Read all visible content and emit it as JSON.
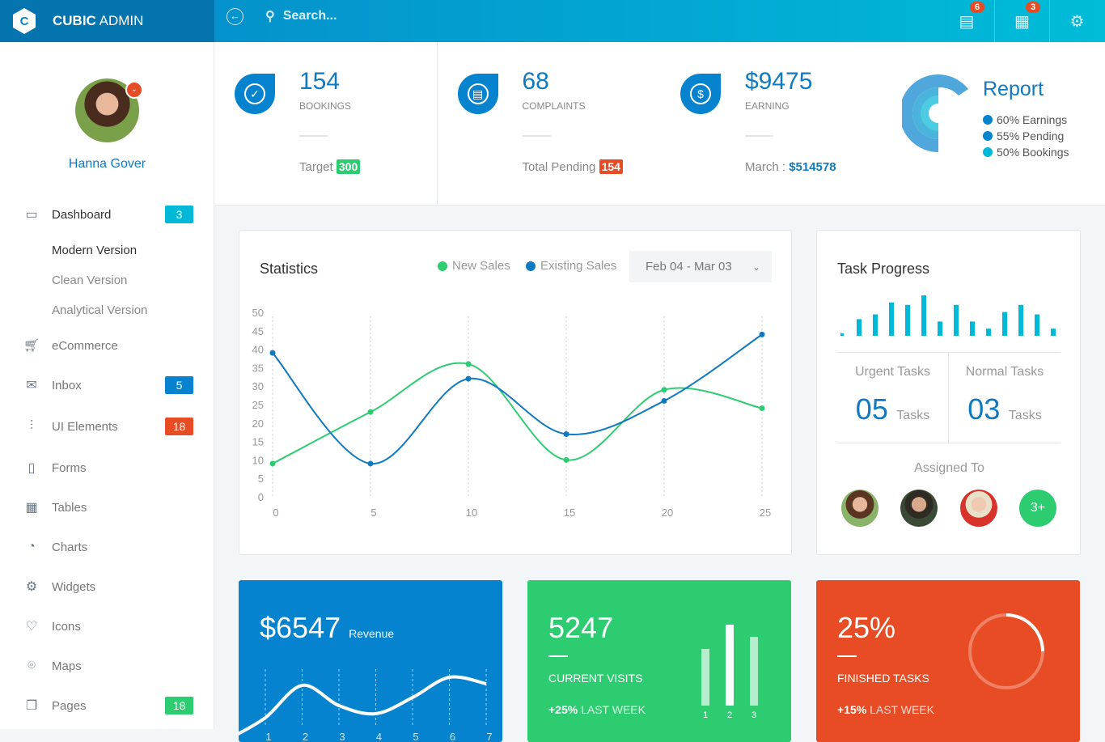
{
  "brand": {
    "bold": "CUBIC",
    "light": "ADMIN"
  },
  "search": {
    "placeholder": "Search..."
  },
  "topbar": {
    "messages_count": "6",
    "calendar_count": "3"
  },
  "user": {
    "name": "Hanna Gover"
  },
  "sidebar": {
    "items": [
      {
        "label": "Dashboard",
        "icon": "monitor-icon",
        "badge": "3",
        "badge_color": "#00b9d9"
      },
      {
        "label": "eCommerce",
        "icon": "cart-icon"
      },
      {
        "label": "Inbox",
        "icon": "envelope-icon",
        "badge": "5",
        "badge_color": "#0583cf"
      },
      {
        "label": "UI Elements",
        "icon": "sliders-icon",
        "badge": "18",
        "badge_color": "#e84c24"
      },
      {
        "label": "Forms",
        "icon": "form-icon"
      },
      {
        "label": "Tables",
        "icon": "grid-icon"
      },
      {
        "label": "Charts",
        "icon": "pie-chart-icon"
      },
      {
        "label": "Widgets",
        "icon": "gear-icon"
      },
      {
        "label": "Icons",
        "icon": "bulb-icon"
      },
      {
        "label": "Maps",
        "icon": "map-pin-icon"
      },
      {
        "label": "Pages",
        "icon": "pages-icon",
        "badge": "18",
        "badge_color": "#2ecc71"
      }
    ],
    "dashboard_sub": [
      "Modern Version",
      "Clean Version",
      "Analytical Version"
    ]
  },
  "stats": [
    {
      "value": "154",
      "label": "BOOKINGS",
      "footer": "Target",
      "pill": "300",
      "pill_color": "#2ecc71",
      "icon": "check-circle-icon"
    },
    {
      "value": "68",
      "label": "COMPLAINTS",
      "footer": "Total Pending",
      "pill": "154",
      "pill_color": "#e84c24",
      "icon": "comment-icon"
    },
    {
      "value": "$9475",
      "label": "EARNING",
      "footer": "March :",
      "footer_value": "$514578",
      "icon": "dollar-icon"
    }
  ],
  "report": {
    "title": "Report",
    "items": [
      {
        "label": "60% Earnings",
        "value": 60,
        "color": "#0583cf"
      },
      {
        "label": "55% Pending",
        "value": 55,
        "color": "#0583cf"
      },
      {
        "label": "50% Bookings",
        "value": 50,
        "color": "#00b9d9"
      }
    ]
  },
  "statistics": {
    "title": "Statistics",
    "date_range": "Feb 04 - Mar 03"
  },
  "chart_data": {
    "type": "line",
    "title": "Statistics",
    "x": [
      0,
      5,
      10,
      15,
      20,
      25
    ],
    "xlim": [
      0,
      25
    ],
    "ylim": [
      0,
      50
    ],
    "xticks": [
      0,
      5,
      10,
      15,
      20,
      25
    ],
    "yticks": [
      0,
      5,
      10,
      15,
      20,
      25,
      30,
      35,
      40,
      45,
      50
    ],
    "series": [
      {
        "name": "New Sales",
        "color": "#2ecc71",
        "values": [
          9,
          23,
          36,
          10,
          29,
          24
        ]
      },
      {
        "name": "Existing Sales",
        "color": "#0f7ac2",
        "values": [
          39,
          9,
          32,
          17,
          26,
          44
        ]
      }
    ]
  },
  "task_progress": {
    "title": "Task Progress",
    "bars": [
      1,
      7,
      9,
      14,
      13,
      17,
      6,
      13,
      6,
      3,
      10,
      13,
      9,
      3
    ],
    "urgent_label": "Urgent Tasks",
    "urgent_value": "05",
    "normal_label": "Normal Tasks",
    "normal_value": "03",
    "unit": "Tasks",
    "assigned_label": "Assigned To",
    "more": "3+"
  },
  "tiles": {
    "revenue": {
      "value": "$6547",
      "label": "Revenue",
      "x_labels": [
        "1",
        "2",
        "3",
        "4",
        "5",
        "6",
        "7"
      ],
      "series": [
        2,
        6,
        3.5,
        2.5,
        4.5,
        7,
        6.2
      ]
    },
    "visits": {
      "value": "5247",
      "caption": "CURRENT VISITS",
      "change": "+25%",
      "change_label": "LAST WEEK",
      "bars": [
        {
          "label": "1",
          "value": 70
        },
        {
          "label": "2",
          "value": 100
        },
        {
          "label": "3",
          "value": 85
        }
      ]
    },
    "tasks": {
      "value": "25%",
      "caption": "FINISHED TASKS",
      "change": "+15%",
      "change_label": "LAST WEEK",
      "progress": 0.25
    }
  }
}
